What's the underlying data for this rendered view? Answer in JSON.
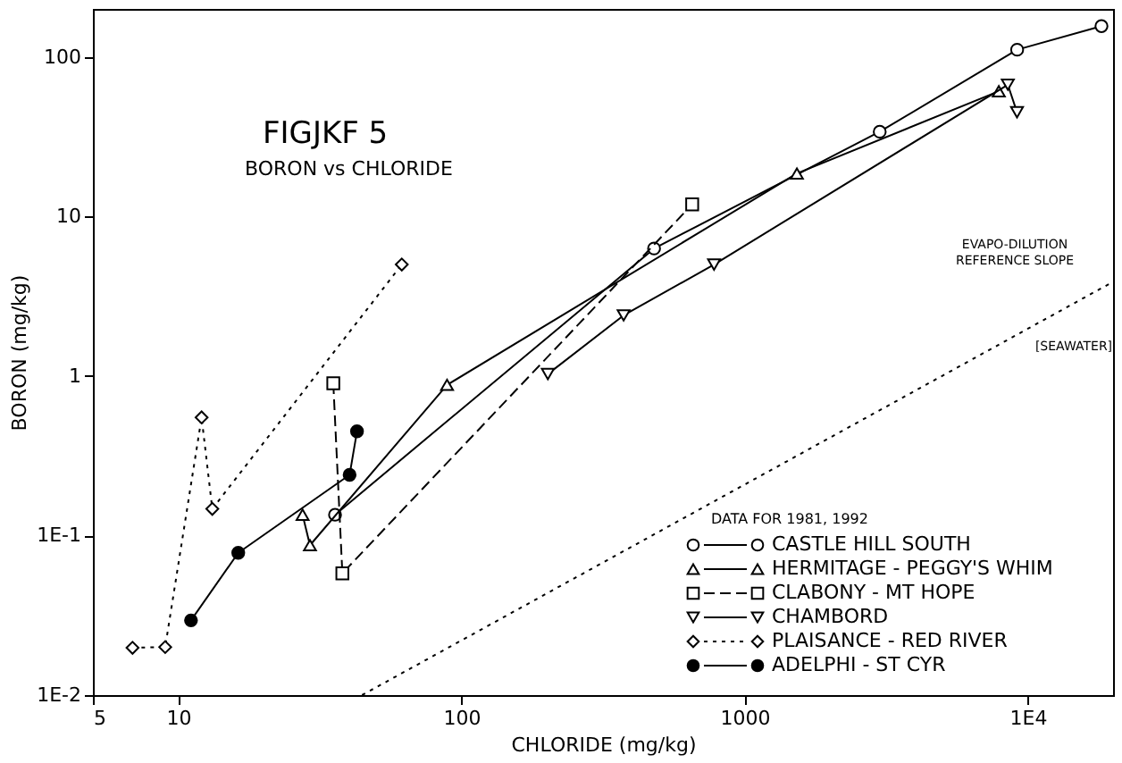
{
  "chart_data": {
    "type": "line",
    "title": "FIGJKF 5",
    "subtitle": "BORON vs CHLORIDE",
    "xlabel": "CHLORIDE (mg/kg)",
    "ylabel": "BORON (mg/kg)",
    "legend_title": "DATA FOR 1981, 1992",
    "legend": "bottom right",
    "log": "xy",
    "grid": false,
    "xlim": [
      5,
      20000
    ],
    "ylim": [
      0.01,
      200
    ],
    "xticks": [
      5,
      10,
      100,
      1000,
      {
        "value": 10000,
        "label": "1E4"
      }
    ],
    "yticks": [
      {
        "value": 0.01,
        "label": "1E-2"
      },
      {
        "value": 0.1,
        "label": "1E-1"
      },
      1,
      10,
      100
    ],
    "series": [
      {
        "name": "CASTLE HILL SOUTH",
        "color": "#000000",
        "marker": "circle",
        "line_style": "solid",
        "x": [
          35.8,
          479,
          3000,
          9170,
          18200
        ],
        "values": [
          0.135,
          6.3,
          34,
          111,
          156
        ]
      },
      {
        "name": "HERMITAGE - PEGGY'S WHIM",
        "color": "#000000",
        "marker": "triangle",
        "line_style": "solid",
        "x": [
          27.5,
          29.2,
          89,
          1530,
          7900
        ],
        "values": [
          0.135,
          0.087,
          0.88,
          18.6,
          61
        ]
      },
      {
        "name": "CLABONY - MT HOPE",
        "color": "#000000",
        "marker": "square",
        "line_style": "dashed",
        "x": [
          35.3,
          38,
          653
        ],
        "values": [
          0.9,
          0.058,
          11.9
        ]
      },
      {
        "name": "CHAMBORD",
        "color": "#000000",
        "marker": "triangle-down",
        "line_style": "solid",
        "x": [
          202,
          374,
          780,
          8500,
          9160
        ],
        "values": [
          1.03,
          2.4,
          5.0,
          67,
          45
        ]
      },
      {
        "name": "PLAISANCE - RED RIVER",
        "color": "#000000",
        "marker": "diamond",
        "line_style": "dotted",
        "x": [
          6.9,
          9.0,
          12.1,
          13.2,
          61.6
        ],
        "values": [
          0.0198,
          0.02,
          0.55,
          0.147,
          5.0
        ]
      },
      {
        "name": "ADELPHI - ST CYR",
        "color": "#000000",
        "marker": "filled circle",
        "line_style": "solid",
        "x": [
          11.1,
          16.3,
          40.3,
          42.8
        ],
        "values": [
          0.0294,
          0.078,
          0.24,
          0.45
        ]
      },
      {
        "type": "line",
        "color": "#000000",
        "marker": "none",
        "line_style": "dotted",
        "x": [
          44.6,
          19500
        ],
        "values": [
          0.01,
          3.8
        ]
      }
    ],
    "annotations": [
      "EVAPO-DILUTION\nREFERENCE SLOPE",
      "[SEAWATER]"
    ]
  }
}
